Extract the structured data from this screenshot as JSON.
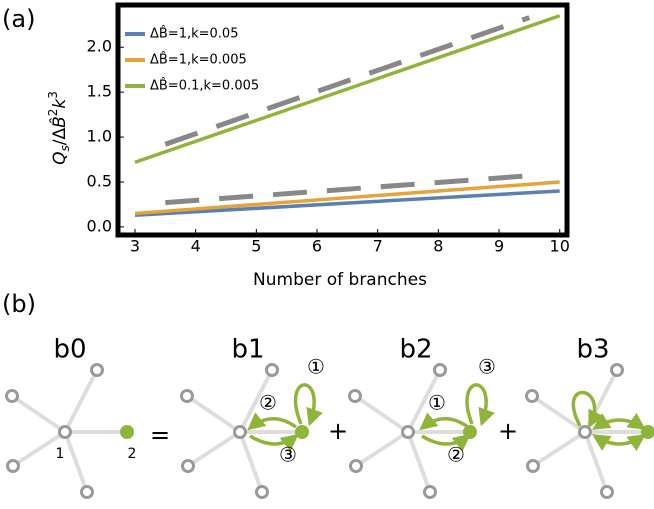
{
  "chart_data": {
    "type": "line",
    "panel_label": "(a)",
    "x_label": "Number of branches",
    "y_label": [
      "Q",
      "s",
      "/Δ",
      "B̂",
      "2",
      "k",
      "3"
    ],
    "xlim": [
      2.72,
      10.12
    ],
    "ylim": [
      -0.09,
      2.47
    ],
    "xticks": [
      3,
      4,
      5,
      6,
      7,
      8,
      9,
      10
    ],
    "yticks": [
      {
        "value": 0,
        "label": "0.0"
      },
      {
        "value": 0.5,
        "label": "0.5"
      },
      {
        "value": 1,
        "label": "1.0"
      },
      {
        "value": 1.5,
        "label": "1.5"
      },
      {
        "value": 2,
        "label": "2.0"
      }
    ],
    "series": [
      {
        "name": "ΔB̂=1,k=0.05",
        "color": "#5b7fb0",
        "x": [
          3,
          10
        ],
        "values": [
          0.13,
          0.4
        ]
      },
      {
        "name": "ΔB̂=1,k=0.005",
        "color": "#e5a33a",
        "x": [
          3,
          10
        ],
        "values": [
          0.15,
          0.5
        ]
      },
      {
        "name": "ΔB̂=0.1,k=0.005",
        "color": "#8fb43a",
        "x": [
          3,
          10
        ],
        "values": [
          0.72,
          2.35
        ]
      },
      {
        "color": "#888888",
        "dashed": true,
        "x": [
          3.5,
          9.5
        ],
        "values": [
          0.92,
          2.33
        ]
      },
      {
        "color": "#888888",
        "dashed": true,
        "x": [
          3.5,
          9.5
        ],
        "values": [
          0.27,
          0.57
        ]
      }
    ]
  },
  "diagram": {
    "panel_label": "(b)",
    "panels": [
      {
        "label": "b0"
      },
      {
        "label": "b1",
        "steps": [
          "①",
          "②",
          "③"
        ]
      },
      {
        "label": "b2",
        "steps": [
          "③",
          "①",
          "②"
        ]
      },
      {
        "label": "b3"
      }
    ],
    "node_labels": [
      "1",
      "2"
    ],
    "operators": [
      "=",
      "+",
      "+"
    ]
  }
}
